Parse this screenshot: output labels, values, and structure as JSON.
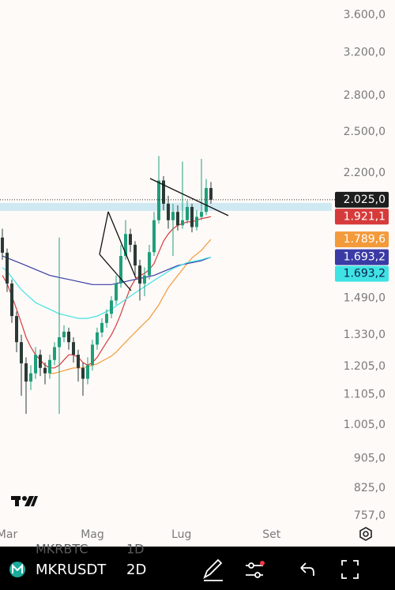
{
  "chart_data": {
    "type": "candlestick",
    "log_scale": true,
    "ylim": [
      730,
      3770
    ],
    "yticks": [
      {
        "value": 3600,
        "label": "3.600,0"
      },
      {
        "value": 3200,
        "label": "3.200,0"
      },
      {
        "value": 2800,
        "label": "2.800,0"
      },
      {
        "value": 2500,
        "label": "2.500,0"
      },
      {
        "value": 2200,
        "label": "2.200,0"
      },
      {
        "value": 1490,
        "label": "1.490,0"
      },
      {
        "value": 1330,
        "label": "1.330,0"
      },
      {
        "value": 1205,
        "label": "1.205,0"
      },
      {
        "value": 1105,
        "label": "1.105,0"
      },
      {
        "value": 1005,
        "label": "1.005,0"
      },
      {
        "value": 905,
        "label": "905,0"
      },
      {
        "value": 825,
        "label": "825,0"
      },
      {
        "value": 757,
        "label": "757,0"
      }
    ],
    "xlim": [
      -0.5,
      69.5
    ],
    "xticks": [
      {
        "value": 1,
        "label": "Mar"
      },
      {
        "value": 19,
        "label": "Mag"
      },
      {
        "value": 37.8,
        "label": "Lug"
      },
      {
        "value": 56.8,
        "label": "Set"
      }
    ],
    "up_color": "#1f9e7a",
    "down_color": "#2b3a35",
    "ohlc": [
      [
        1800,
        1850,
        1680,
        1717
      ],
      [
        1717,
        1740,
        1520,
        1560
      ],
      [
        1560,
        1580,
        1380,
        1410
      ],
      [
        1410,
        1430,
        1260,
        1300
      ],
      [
        1300,
        1330,
        1100,
        1217
      ],
      [
        1217,
        1240,
        1040,
        1150
      ],
      [
        1150,
        1210,
        1120,
        1180
      ],
      [
        1180,
        1280,
        1160,
        1250
      ],
      [
        1250,
        1270,
        1170,
        1200
      ],
      [
        1200,
        1220,
        1140,
        1180
      ],
      [
        1180,
        1250,
        1160,
        1230
      ],
      [
        1230,
        1300,
        1210,
        1280
      ],
      [
        1280,
        1800,
        1040,
        1320
      ],
      [
        1320,
        1370,
        1300,
        1343
      ],
      [
        1343,
        1360,
        1270,
        1300
      ],
      [
        1300,
        1320,
        1220,
        1250
      ],
      [
        1250,
        1270,
        1150,
        1200
      ],
      [
        1200,
        1220,
        1100,
        1160
      ],
      [
        1160,
        1240,
        1140,
        1210
      ],
      [
        1210,
        1310,
        1190,
        1290
      ],
      [
        1290,
        1360,
        1270,
        1340
      ],
      [
        1340,
        1400,
        1320,
        1380
      ],
      [
        1380,
        1440,
        1360,
        1420
      ],
      [
        1420,
        1500,
        1400,
        1480
      ],
      [
        1480,
        1600,
        1460,
        1560
      ],
      [
        1560,
        1760,
        1540,
        1700
      ],
      [
        1700,
        1900,
        1680,
        1820
      ],
      [
        1820,
        1850,
        1720,
        1760
      ],
      [
        1760,
        1780,
        1600,
        1650
      ],
      [
        1650,
        1680,
        1480,
        1560
      ],
      [
        1560,
        1640,
        1500,
        1600
      ],
      [
        1600,
        1760,
        1580,
        1720
      ],
      [
        1720,
        1950,
        1700,
        1900
      ],
      [
        1900,
        2320,
        1880,
        2150
      ],
      [
        2150,
        2180,
        1960,
        2000
      ],
      [
        2000,
        2050,
        1850,
        1900
      ],
      [
        1900,
        2000,
        1700,
        1950
      ],
      [
        1950,
        1990,
        1840,
        1870
      ],
      [
        1870,
        2280,
        1850,
        1900
      ],
      [
        1900,
        2020,
        1880,
        1980
      ],
      [
        1980,
        2000,
        1830,
        1860
      ],
      [
        1860,
        1960,
        1840,
        1920
      ],
      [
        1920,
        2300,
        1900,
        1950
      ],
      [
        1950,
        2160,
        1930,
        2100
      ],
      [
        2100,
        2140,
        2000,
        2025
      ]
    ],
    "last_price": {
      "value": 2025,
      "label": "2.025,0",
      "color": "#1e1e1e",
      "text_color": "#ffffff"
    },
    "indicators": [
      {
        "color": "#d63b3b",
        "text_color": "#ffffff",
        "last_label": "1.921,1",
        "values": [
          1600,
          1560,
          1500,
          1440,
          1380,
          1320,
          1280,
          1250,
          1230,
          1210,
          1200,
          1200,
          1210,
          1230,
          1250,
          1250,
          1240,
          1220,
          1210,
          1220,
          1240,
          1270,
          1300,
          1330,
          1370,
          1420,
          1480,
          1540,
          1580,
          1600,
          1610,
          1630,
          1660,
          1720,
          1780,
          1820,
          1850,
          1870,
          1880,
          1890,
          1890,
          1900,
          1910,
          1915,
          1921.1
        ]
      },
      {
        "color": "#f39a3a",
        "text_color": "#ffffff",
        "last_label": "1.789,6",
        "values": [
          null,
          null,
          null,
          null,
          null,
          null,
          null,
          null,
          null,
          null,
          1180,
          1180,
          1185,
          1190,
          1195,
          1200,
          1200,
          1200,
          1205,
          1210,
          1215,
          1225,
          1235,
          1245,
          1260,
          1280,
          1300,
          1320,
          1340,
          1360,
          1380,
          1400,
          1430,
          1460,
          1500,
          1540,
          1570,
          1600,
          1630,
          1660,
          1690,
          1710,
          1730,
          1760,
          1789.6
        ]
      },
      {
        "color": "#3b3ba6",
        "text_color": "#ffffff",
        "last_label": "1.693,2",
        "values": [
          1700,
          1690,
          1680,
          1670,
          1660,
          1650,
          1640,
          1630,
          1620,
          1610,
          1600,
          1595,
          1590,
          1585,
          1580,
          1575,
          1570,
          1565,
          1560,
          1555,
          1555,
          1555,
          1555,
          1555,
          1560,
          1565,
          1570,
          1575,
          1580,
          1585,
          1590,
          1595,
          1600,
          1610,
          1620,
          1630,
          1640,
          1650,
          1655,
          1660,
          1665,
          1670,
          1675,
          1685,
          1693.2
        ]
      },
      {
        "color": "#3fe3e3",
        "text_color": "#0d1a4a",
        "last_label": "1.693,2",
        "values": [
          1640,
          1620,
          1590,
          1560,
          1530,
          1510,
          1490,
          1470,
          1460,
          1450,
          1440,
          1430,
          1420,
          1415,
          1410,
          1405,
          1400,
          1400,
          1400,
          1405,
          1410,
          1420,
          1430,
          1440,
          1455,
          1470,
          1485,
          1500,
          1515,
          1530,
          1545,
          1560,
          1575,
          1590,
          1605,
          1620,
          1635,
          1645,
          1655,
          1665,
          1670,
          1675,
          1680,
          1688,
          1693.2
        ]
      }
    ]
  },
  "toolbar": {
    "symbol": "MKRUSDT",
    "interval": "2D",
    "ghost_symbol": "MKRBTC",
    "ghost_interval": "1D"
  }
}
